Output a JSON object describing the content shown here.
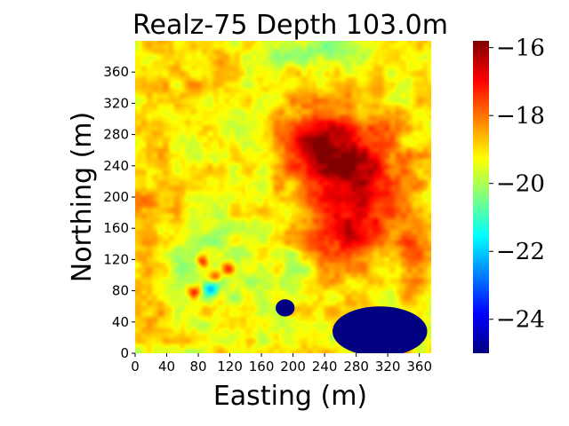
{
  "chart_data": {
    "type": "heatmap",
    "title": "Realz-75 Depth 103.0m",
    "xlabel": "Easting (m)",
    "ylabel": "Northing (m)",
    "xlim": [
      0,
      375
    ],
    "ylim": [
      0,
      400
    ],
    "xticks": [
      0,
      40,
      80,
      120,
      160,
      200,
      240,
      280,
      320,
      360
    ],
    "yticks": [
      0,
      40,
      80,
      120,
      160,
      200,
      240,
      280,
      320,
      360
    ],
    "colorbar": {
      "colormap": "jet",
      "range": [
        -25,
        -15.8
      ],
      "ticks": [
        -16,
        -18,
        -20,
        -22,
        -24
      ],
      "tick_labels": [
        "−16",
        "−18",
        "−20",
        "−22",
        "−24"
      ]
    },
    "background_value": -19.2,
    "features": [
      {
        "name": "large high zone",
        "x": 275,
        "y": 225,
        "sx": 45,
        "sy": 55,
        "value": -16.4
      },
      {
        "name": "high zone lobe",
        "x": 225,
        "y": 270,
        "sx": 30,
        "sy": 30,
        "value": -17.2
      },
      {
        "name": "southern high lobe",
        "x": 260,
        "y": 140,
        "sx": 35,
        "sy": 30,
        "value": -17.8
      },
      {
        "name": "eastern high edge",
        "x": 355,
        "y": 120,
        "sx": 15,
        "sy": 30,
        "value": -17.8
      },
      {
        "name": "western moderate zone",
        "x": 20,
        "y": 200,
        "sx": 30,
        "sy": 40,
        "value": -18.5
      },
      {
        "name": "lower-left moderate zone",
        "x": 10,
        "y": 80,
        "sx": 25,
        "sy": 30,
        "value": -18.3
      },
      {
        "name": "top-left moderate patch",
        "x": 60,
        "y": 360,
        "sx": 40,
        "sy": 30,
        "value": -18.7
      },
      {
        "name": "low cell",
        "x": 100,
        "y": 120,
        "sx": 45,
        "sy": 35,
        "value": -20.0
      },
      {
        "name": "small low patch",
        "x": 215,
        "y": 110,
        "sx": 20,
        "sy": 20,
        "value": -20.0
      },
      {
        "name": "north-central low patch",
        "x": 230,
        "y": 385,
        "sx": 40,
        "sy": 14,
        "value": -20.3
      },
      {
        "name": "high spot",
        "x": 75,
        "y": 78,
        "sx": 6,
        "sy": 6,
        "value": -16.8
      },
      {
        "name": "high spot",
        "x": 118,
        "y": 108,
        "sx": 6,
        "sy": 6,
        "value": -16.8
      },
      {
        "name": "high spot",
        "x": 85,
        "y": 118,
        "sx": 5,
        "sy": 5,
        "value": -17.0
      },
      {
        "name": "high spot",
        "x": 102,
        "y": 98,
        "sx": 5,
        "sy": 5,
        "value": -17.0
      },
      {
        "name": "low spot",
        "x": 95,
        "y": 82,
        "sx": 7,
        "sy": 7,
        "value": -21.8
      }
    ],
    "minimum_zones": [
      {
        "name": "small minimum zone",
        "cx": 190,
        "cy": 58,
        "rx": 12,
        "ry": 11,
        "value": -25.0
      },
      {
        "name": "large minimum zone",
        "cx": 310,
        "cy": 28,
        "rx": 60,
        "ry": 32,
        "value": -25.0
      }
    ]
  }
}
